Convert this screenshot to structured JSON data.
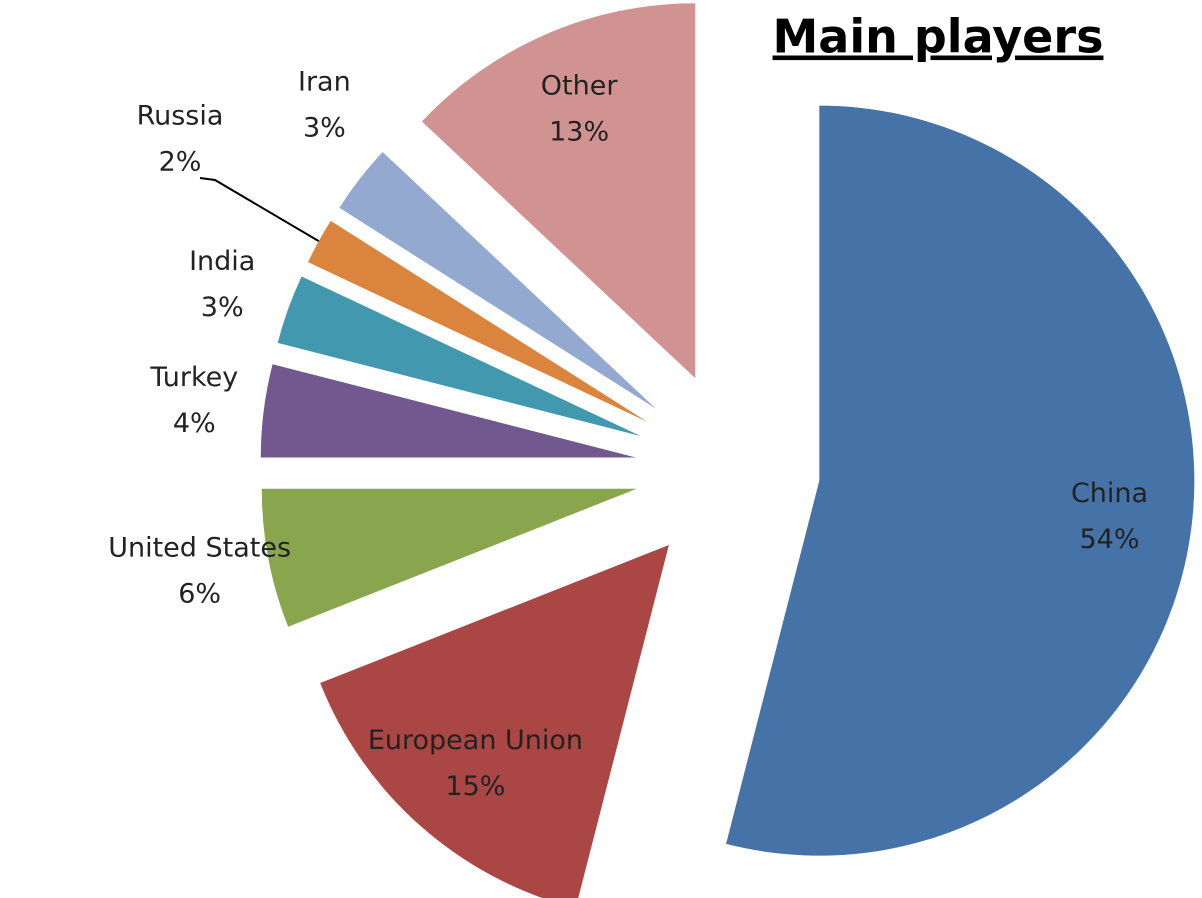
{
  "chart_data": {
    "type": "pie",
    "title": "Main players",
    "categories": [
      "China",
      "European Union",
      "United States",
      "Turkey",
      "India",
      "Russia",
      "Iran",
      "Other"
    ],
    "values": [
      54,
      15,
      6,
      4,
      3,
      2,
      3,
      13
    ],
    "value_labels": [
      "54%",
      "15%",
      "6%",
      "4%",
      "3%",
      "2%",
      "3%",
      "13%"
    ],
    "colors": [
      "#4572a7",
      "#aa4643",
      "#89a54e",
      "#71588f",
      "#4198af",
      "#db843d",
      "#93a9cf",
      "#d19392"
    ]
  }
}
